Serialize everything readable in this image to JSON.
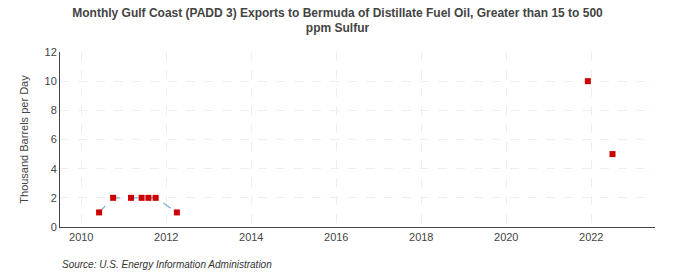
{
  "chart_data": {
    "type": "scatter",
    "title": "Monthly Gulf Coast (PADD 3) Exports to Bermuda of Distillate Fuel Oil, Greater than 15 to 500\nppm Sulfur",
    "ylabel": "Thousand Barrels per Day",
    "source": "Source: U.S. Energy Information Administration",
    "series": [
      {
        "type": "line",
        "color": "#7aadd4",
        "line_style": "dashed",
        "x": [
          2010.42,
          2010.75,
          2011.17,
          2011.42,
          2011.58,
          2011.75,
          2012.25
        ],
        "values": [
          1.0,
          2.0,
          2.0,
          2.0,
          2.0,
          2.0,
          1.0
        ]
      },
      {
        "type": "scatter",
        "color": "#cc0000",
        "marker": "square",
        "x": [
          2010.42,
          2010.75,
          2011.17,
          2011.42,
          2011.58,
          2011.75,
          2012.25,
          2021.92,
          2022.5
        ],
        "values": [
          1.0,
          2.0,
          2.0,
          2.0,
          2.0,
          2.0,
          1.0,
          10.0,
          5.0
        ]
      }
    ],
    "xlim": [
      2009.5,
      2023.5
    ],
    "ylim": [
      0,
      12
    ],
    "xticks": [
      2010,
      2012,
      2014,
      2016,
      2018,
      2020,
      2022
    ],
    "yticks": [
      0,
      2,
      4,
      6,
      8,
      10,
      12
    ],
    "grid": true
  }
}
